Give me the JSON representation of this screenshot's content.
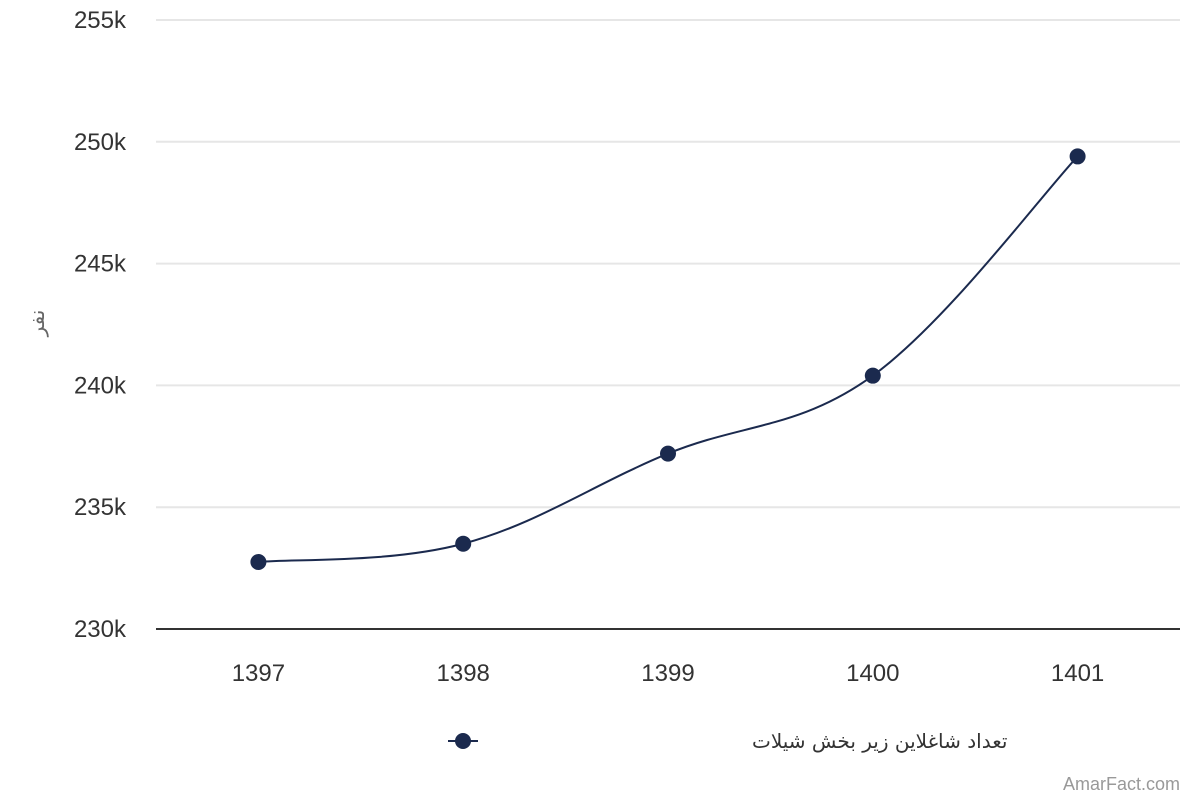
{
  "chart_data": {
    "type": "line",
    "categories": [
      "1397",
      "1398",
      "1399",
      "1400",
      "1401"
    ],
    "series": [
      {
        "name": "تعداد شاغلاین زیر بخش شیلات",
        "values": [
          232750,
          233500,
          237200,
          240400,
          249400
        ],
        "color": "#1b2a4e"
      }
    ],
    "ylabel": "نفر",
    "ylim": [
      230000,
      255000
    ],
    "yticks": [
      230000,
      235000,
      240000,
      245000,
      250000,
      255000
    ],
    "ytick_labels": [
      "230k",
      "235k",
      "240k",
      "245k",
      "250k",
      "255k"
    ],
    "grid": true,
    "legend_position": "bottom-center",
    "smooth": true
  },
  "credit": "AmarFact.com"
}
